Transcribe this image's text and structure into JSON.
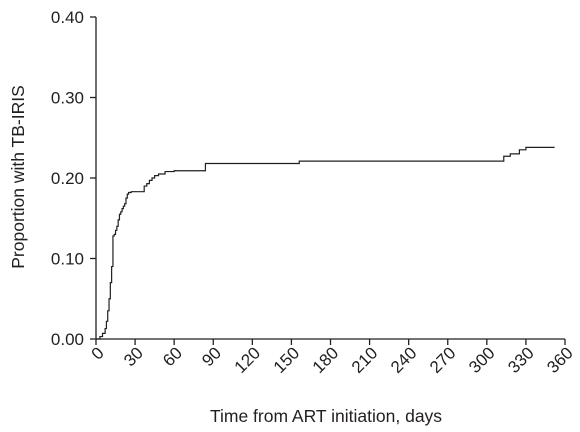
{
  "chart_data": {
    "type": "line",
    "title": "",
    "xlabel": "Time from ART initiation, days",
    "ylabel": "Proportion with TB-IRIS",
    "xlim": [
      0,
      360
    ],
    "ylim": [
      0,
      0.4
    ],
    "x_ticks": [
      "0",
      "30",
      "60",
      "90",
      "120",
      "150",
      "180",
      "210",
      "240",
      "270",
      "300",
      "330",
      "360"
    ],
    "y_ticks": [
      "0.00",
      "0.10",
      "0.20",
      "0.30",
      "0.40"
    ],
    "step": true,
    "grid": false,
    "legend": "none",
    "colors": {
      "line": "#231f20",
      "axis": "#231f20"
    },
    "series": [
      {
        "x": [
          0,
          3,
          5,
          7,
          8,
          9,
          10,
          11,
          12,
          13,
          14,
          15,
          16,
          17,
          18,
          19,
          20,
          21,
          22,
          23,
          24,
          25,
          27,
          30,
          37,
          39,
          41,
          43,
          45,
          48,
          53,
          60,
          72,
          84,
          120,
          156,
          200,
          240,
          300,
          313,
          318,
          325,
          330,
          345,
          352
        ],
        "y": [
          0,
          0.003,
          0.007,
          0.013,
          0.022,
          0.035,
          0.05,
          0.07,
          0.09,
          0.128,
          0.13,
          0.135,
          0.14,
          0.148,
          0.155,
          0.158,
          0.162,
          0.165,
          0.168,
          0.175,
          0.18,
          0.182,
          0.183,
          0.183,
          0.19,
          0.193,
          0.197,
          0.2,
          0.203,
          0.205,
          0.208,
          0.209,
          0.209,
          0.218,
          0.218,
          0.221,
          0.221,
          0.221,
          0.221,
          0.227,
          0.23,
          0.235,
          0.238,
          0.238,
          0.238
        ]
      }
    ]
  }
}
